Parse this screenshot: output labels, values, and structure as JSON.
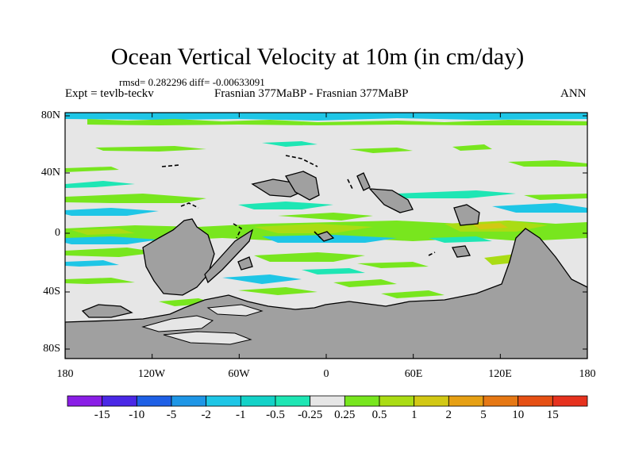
{
  "title": "Ocean Vertical Velocity at 10m (in cm/day)",
  "stats": "rmsd= 0.282296 diff= -0.00633091",
  "experiment": "Expt = tevlb-teckv",
  "comparison": "Frasnian 377MaBP - Frasnian 377MaBP",
  "season": "ANN",
  "y_ticks": [
    "80N",
    "40N",
    "0",
    "40S",
    "80S"
  ],
  "x_ticks": [
    "180",
    "120W",
    "60W",
    "0",
    "60E",
    "120E",
    "180"
  ],
  "colorbar": {
    "labels": [
      "-15",
      "-10",
      "-5",
      "-2",
      "-1",
      "-0.5",
      "-0.25",
      "0.25",
      "0.5",
      "1",
      "2",
      "5",
      "10",
      "15"
    ],
    "colors": [
      "#8a1ee6",
      "#4a28e6",
      "#1e60e6",
      "#1e96e6",
      "#1ec6e6",
      "#14d2c8",
      "#1ee6b4",
      "#e6e6e6",
      "#78e61e",
      "#aadc14",
      "#d2c814",
      "#e6a014",
      "#e67814",
      "#e65014",
      "#e6321e"
    ]
  },
  "colors": {
    "land": "#a0a0a0",
    "ocean_background": "#e6e6e6",
    "upwelling_weak": "#78e61e",
    "upwelling_mid": "#aadc14",
    "upwelling_strong": "#d2c814",
    "downwelling_weak": "#1ee6b4",
    "downwelling_mid": "#1ec6e6"
  }
}
